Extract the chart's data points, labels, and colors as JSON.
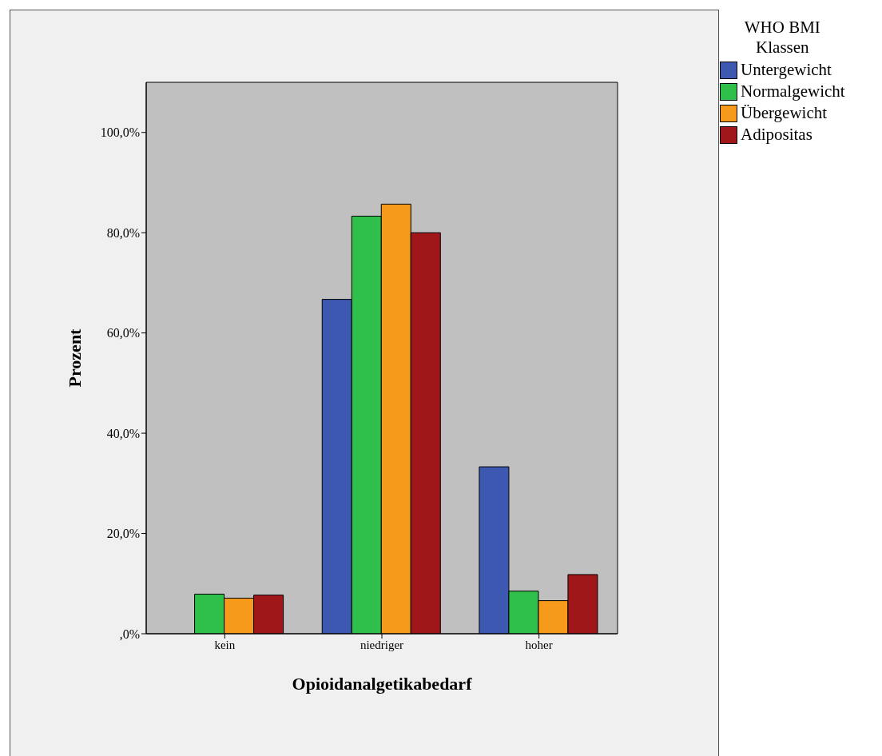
{
  "chart_data": {
    "type": "bar",
    "xlabel": "Opioidanalgetikabedarf",
    "ylabel": "Prozent",
    "legend_title": "WHO BMI\nKlassen",
    "categories": [
      "kein",
      "niedriger",
      "hoher"
    ],
    "series": [
      {
        "name": "Untergewicht",
        "color": "#3c58b0",
        "values": [
          0,
          66.7,
          33.3
        ]
      },
      {
        "name": "Normalgewicht",
        "color": "#2ec04a",
        "values": [
          7.9,
          83.3,
          8.5
        ]
      },
      {
        "name": "Übergewicht",
        "color": "#f59a1a",
        "values": [
          7.1,
          85.7,
          6.6
        ]
      },
      {
        "name": "Adipositas",
        "color": "#a0171a",
        "values": [
          7.7,
          80.0,
          11.8
        ]
      }
    ],
    "ylim": [
      0,
      110
    ],
    "yticks": [
      {
        "value": 0,
        "label": ",0%"
      },
      {
        "value": 20,
        "label": "20,0%"
      },
      {
        "value": 40,
        "label": "40,0%"
      },
      {
        "value": 60,
        "label": "60,0%"
      },
      {
        "value": 80,
        "label": "80,0%"
      },
      {
        "value": 100,
        "label": "100,0%"
      }
    ],
    "grid": false,
    "legend": "top right"
  }
}
